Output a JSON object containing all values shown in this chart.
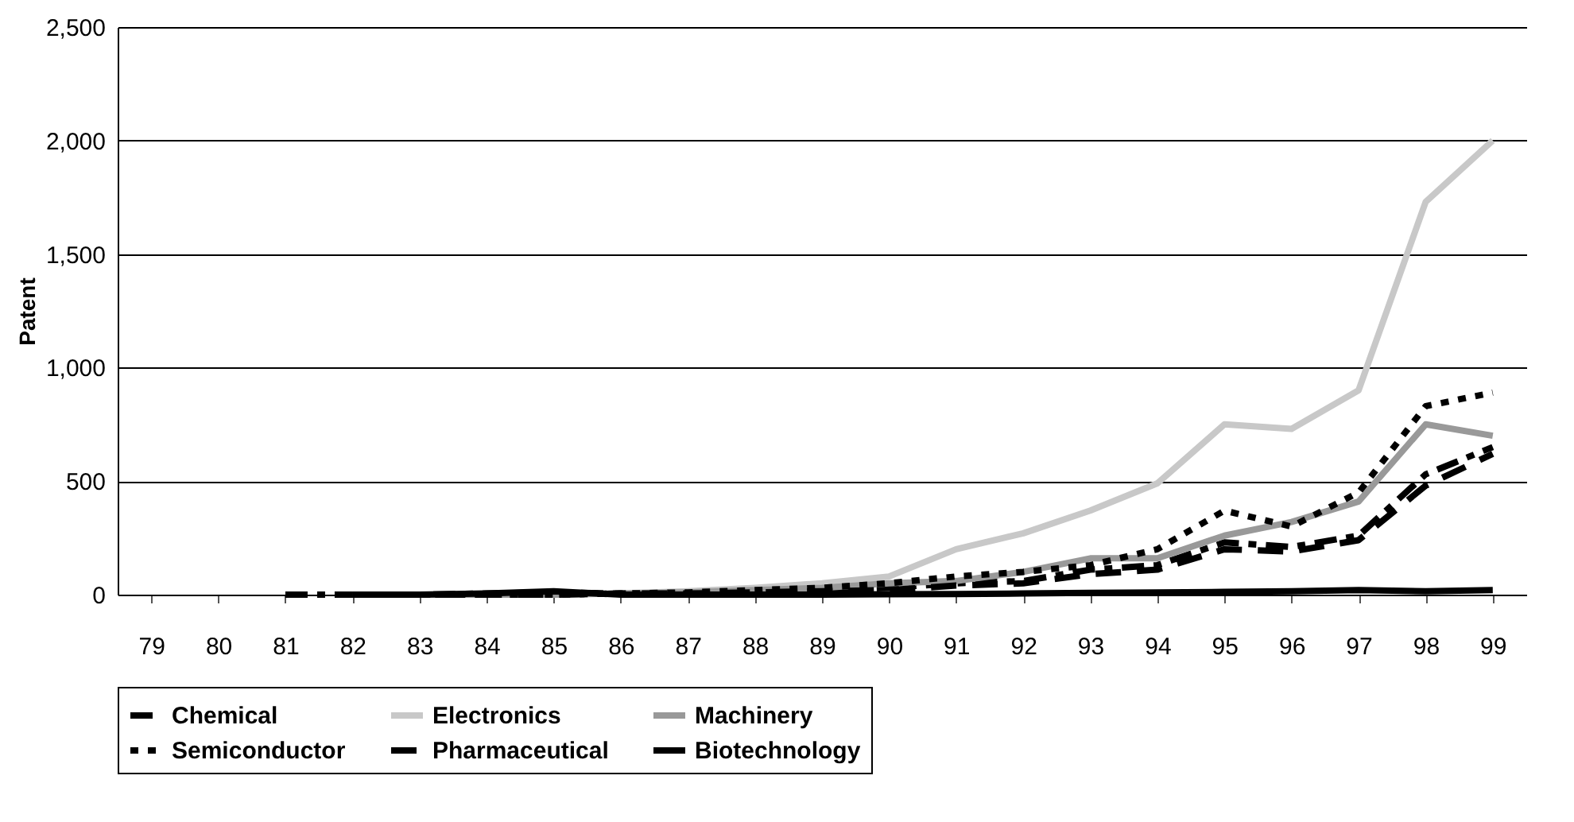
{
  "chart_data": {
    "type": "line",
    "ylabel": "Patent",
    "categories": [
      "79",
      "80",
      "81",
      "82",
      "83",
      "84",
      "85",
      "86",
      "87",
      "88",
      "89",
      "90",
      "91",
      "92",
      "93",
      "94",
      "95",
      "96",
      "97",
      "98",
      "99"
    ],
    "ylim": [
      0,
      2500
    ],
    "yticks": [
      {
        "value": 0,
        "label": "0"
      },
      {
        "value": 500,
        "label": "500"
      },
      {
        "value": 1000,
        "label": "1,000"
      },
      {
        "value": 1500,
        "label": "1,500"
      },
      {
        "value": 2000,
        "label": "2,000"
      },
      {
        "value": 2500,
        "label": "2,500"
      }
    ],
    "grid": "y",
    "legend": "bottom",
    "line_style": "solid",
    "series": [
      {
        "name": "Chemical",
        "color": "#000000",
        "line_style": "dashed",
        "values": [
          null,
          null,
          0,
          0,
          0,
          5,
          10,
          5,
          5,
          10,
          20,
          30,
          50,
          60,
          110,
          130,
          230,
          210,
          260,
          530,
          650
        ]
      },
      {
        "name": "Electronics",
        "color": "#c8c8c8",
        "values": [
          null,
          null,
          null,
          0,
          0,
          0,
          0,
          5,
          15,
          30,
          50,
          80,
          200,
          270,
          370,
          490,
          750,
          730,
          900,
          1730,
          2000
        ]
      },
      {
        "name": "Machinery",
        "color": "#999999",
        "values": [
          null,
          null,
          null,
          0,
          0,
          0,
          0,
          5,
          10,
          20,
          30,
          50,
          60,
          100,
          160,
          160,
          260,
          320,
          410,
          750,
          700
        ]
      },
      {
        "name": "Semiconductor",
        "color": "#000000",
        "line_style": "dotted",
        "values": [
          null,
          null,
          null,
          0,
          0,
          0,
          0,
          5,
          10,
          20,
          30,
          50,
          80,
          100,
          130,
          200,
          370,
          300,
          450,
          830,
          890
        ]
      },
      {
        "name": "Pharmaceutical",
        "color": "#000000",
        "line_style": "dashed",
        "values": [
          null,
          null,
          null,
          0,
          0,
          0,
          0,
          5,
          5,
          10,
          15,
          20,
          40,
          50,
          90,
          110,
          200,
          190,
          240,
          480,
          620
        ]
      },
      {
        "name": "Biotechnology",
        "color": "#000000",
        "values": [
          null,
          null,
          null,
          0,
          0,
          5,
          15,
          0,
          0,
          0,
          0,
          2,
          3,
          5,
          8,
          10,
          12,
          15,
          20,
          15,
          20
        ]
      }
    ]
  }
}
